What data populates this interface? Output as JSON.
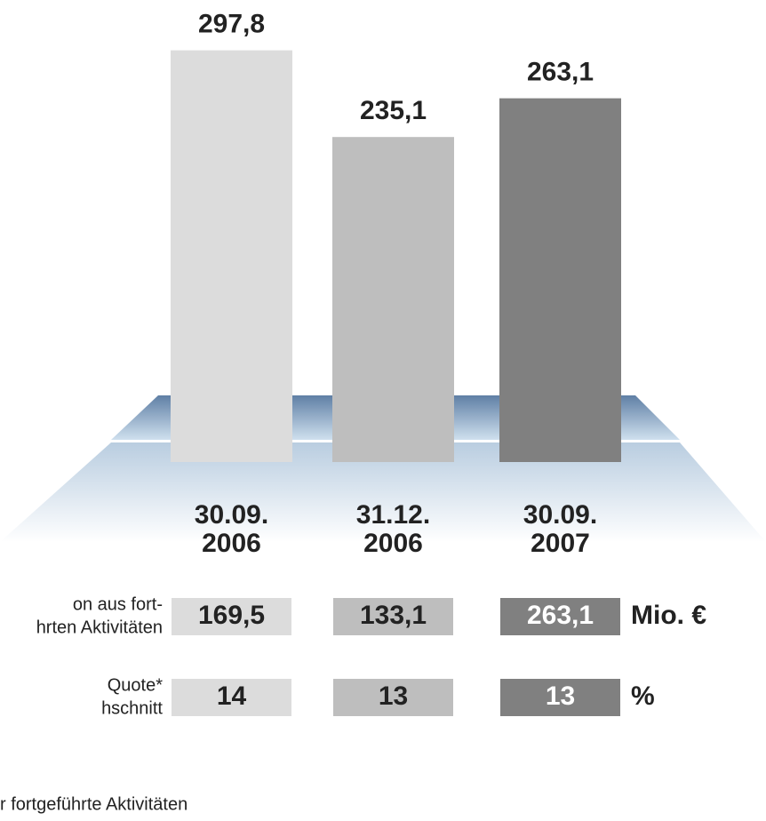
{
  "chart_data": {
    "type": "bar",
    "categories": [
      [
        "30.09.",
        "2006"
      ],
      [
        "31.12.",
        "2006"
      ],
      [
        "30.09.",
        "2007"
      ]
    ],
    "values": [
      297.8,
      235.1,
      263.1
    ],
    "value_labels": [
      "297,8",
      "235,1",
      "263,1"
    ],
    "colors": [
      "#dcdcdc",
      "#bebebe",
      "#808080"
    ]
  },
  "table": {
    "rows": [
      {
        "label": [
          "on aus fort-",
          "hrten Aktivitäten"
        ],
        "values": [
          "169,5",
          "133,1",
          "263,1"
        ],
        "unit": "Mio. €"
      },
      {
        "label": [
          "Quote*",
          "hschnitt"
        ],
        "values": [
          "14",
          "13",
          "13"
        ],
        "unit": "%"
      }
    ]
  },
  "footnote": "r fortgeführte Aktivitäten"
}
